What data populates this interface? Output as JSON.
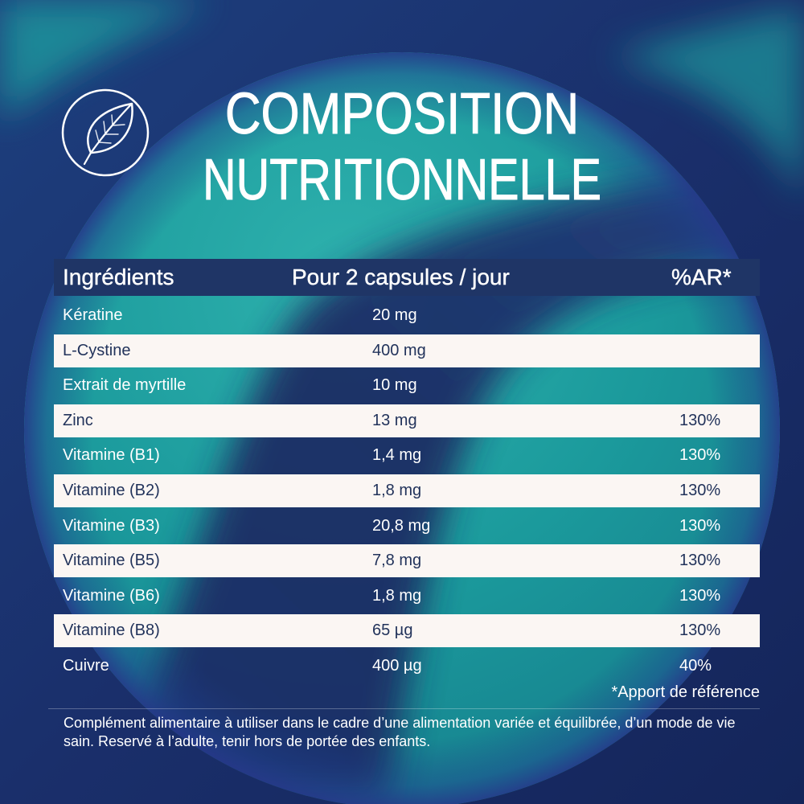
{
  "title": {
    "line1": "COMPOSITION",
    "line2": "NUTRITIONNELLE"
  },
  "badge_icon": "leaf-icon",
  "table": {
    "headers": {
      "ingredient": "Ingrédients",
      "amount": "Pour 2 capsules / jour",
      "ar": "%AR*"
    },
    "rows": [
      {
        "ingredient": "Kératine",
        "amount": "20 mg"
      },
      {
        "ingredient": "L-Cystine",
        "amount": "400 mg"
      },
      {
        "ingredient": "Extrait de myrtille",
        "amount": "10 mg"
      },
      {
        "ingredient": "Zinc",
        "amount": "13 mg",
        "ar": "130%"
      },
      {
        "ingredient": "Vitamine (B1)",
        "amount": "1,4 mg",
        "ar": "130%"
      },
      {
        "ingredient": "Vitamine (B2)",
        "amount": "1,8 mg",
        "ar": "130%"
      },
      {
        "ingredient": "Vitamine (B3)",
        "amount": "20,8 mg",
        "ar": "130%"
      },
      {
        "ingredient": "Vitamine (B5)",
        "amount": "7,8 mg",
        "ar": "130%"
      },
      {
        "ingredient": "Vitamine (B6)",
        "amount": "1,8 mg",
        "ar": "130%"
      },
      {
        "ingredient": "Vitamine (B8)",
        "amount": "65 µg",
        "ar": "130%"
      },
      {
        "ingredient": "Cuivre",
        "amount": "400 µg",
        "ar": "40%"
      }
    ]
  },
  "footnote": "*Apport de référence",
  "disclaimer": "Complément alimentaire à utiliser dans le cadre d’une alimentation variée et équilibrée, d’un mode de vie sain. Reservé à l’adulte, tenir hors de portée des enfants.",
  "colors": {
    "background_navy": "#1a2f6b",
    "circle_teal": "#1b9a9c",
    "header_band": "#1f3566",
    "row_highlight": "#fbf6f3",
    "row_highlight_text": "#22335b",
    "text_light": "#ffffff"
  }
}
